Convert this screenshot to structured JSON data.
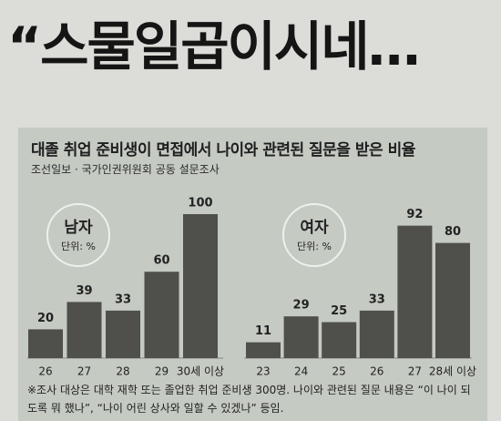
{
  "headline": "“스물일곱이시네…",
  "title": "대졸 취업 준비생이 면접에서 나이와 관련된 질문을 받은 비율",
  "subtitle": "조선일보 · 국가인권위원회 공동 설문조사",
  "note": "※조사 대상은 대학 재학 또는 졸업한 취업 준비생 300명. 나이와 관련된 질문 내용은 “이 나이 되도록 뭐 했나”, “나이 어린 상사와 일할 수 있겠나” 등임.",
  "chart_data": [
    {
      "type": "bar",
      "title": "남자",
      "unit": "단위: %",
      "color": "#4f4f4c",
      "categories": [
        "26",
        "27",
        "28",
        "29",
        "30세 이상"
      ],
      "values": [
        20,
        39,
        33,
        60,
        100
      ]
    },
    {
      "type": "bar",
      "title": "여자",
      "unit": "단위: %",
      "color": "#4f4f4c",
      "categories": [
        "23",
        "24",
        "25",
        "26",
        "27",
        "28세 이상"
      ],
      "values": [
        11,
        29,
        25,
        33,
        92,
        80
      ]
    }
  ]
}
